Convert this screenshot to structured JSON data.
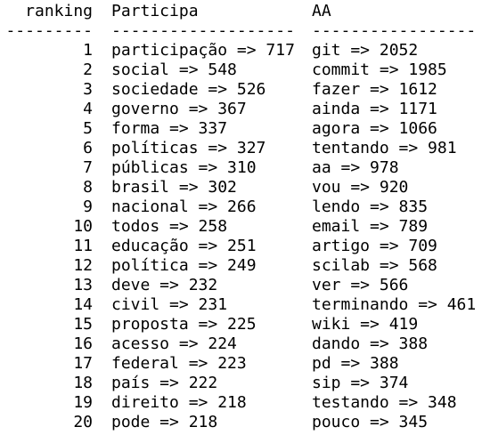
{
  "header": {
    "ranking": "ranking",
    "col_a": "Participa",
    "col_b": "AA"
  },
  "separator": {
    "ranking": "---------",
    "col_a": "-------------------",
    "col_b": "-----------------"
  },
  "rows": [
    {
      "rank": "1",
      "a": "participação => 717",
      "b": "git => 2052"
    },
    {
      "rank": "2",
      "a": "social => 548",
      "b": "commit => 1985"
    },
    {
      "rank": "3",
      "a": "sociedade => 526",
      "b": "fazer => 1612"
    },
    {
      "rank": "4",
      "a": "governo => 367",
      "b": "ainda => 1171"
    },
    {
      "rank": "5",
      "a": "forma => 337",
      "b": "agora => 1066"
    },
    {
      "rank": "6",
      "a": "políticas => 327",
      "b": "tentando => 981"
    },
    {
      "rank": "7",
      "a": "públicas => 310",
      "b": "aa => 978"
    },
    {
      "rank": "8",
      "a": "brasil => 302",
      "b": "vou => 920"
    },
    {
      "rank": "9",
      "a": "nacional => 266",
      "b": "lendo => 835"
    },
    {
      "rank": "10",
      "a": "todos => 258",
      "b": "email => 789"
    },
    {
      "rank": "11",
      "a": "educação => 251",
      "b": "artigo => 709"
    },
    {
      "rank": "12",
      "a": "política => 249",
      "b": "scilab => 568"
    },
    {
      "rank": "13",
      "a": "deve => 232",
      "b": "ver => 566"
    },
    {
      "rank": "14",
      "a": "civil => 231",
      "b": "terminando => 461"
    },
    {
      "rank": "15",
      "a": "proposta => 225",
      "b": "wiki => 419"
    },
    {
      "rank": "16",
      "a": "acesso => 224",
      "b": "dando => 388"
    },
    {
      "rank": "17",
      "a": "federal => 223",
      "b": "pd => 388"
    },
    {
      "rank": "18",
      "a": "país => 222",
      "b": "sip => 374"
    },
    {
      "rank": "19",
      "a": "direito => 218",
      "b": "testando => 348"
    },
    {
      "rank": "20",
      "a": "pode => 218",
      "b": "pouco => 345"
    }
  ]
}
